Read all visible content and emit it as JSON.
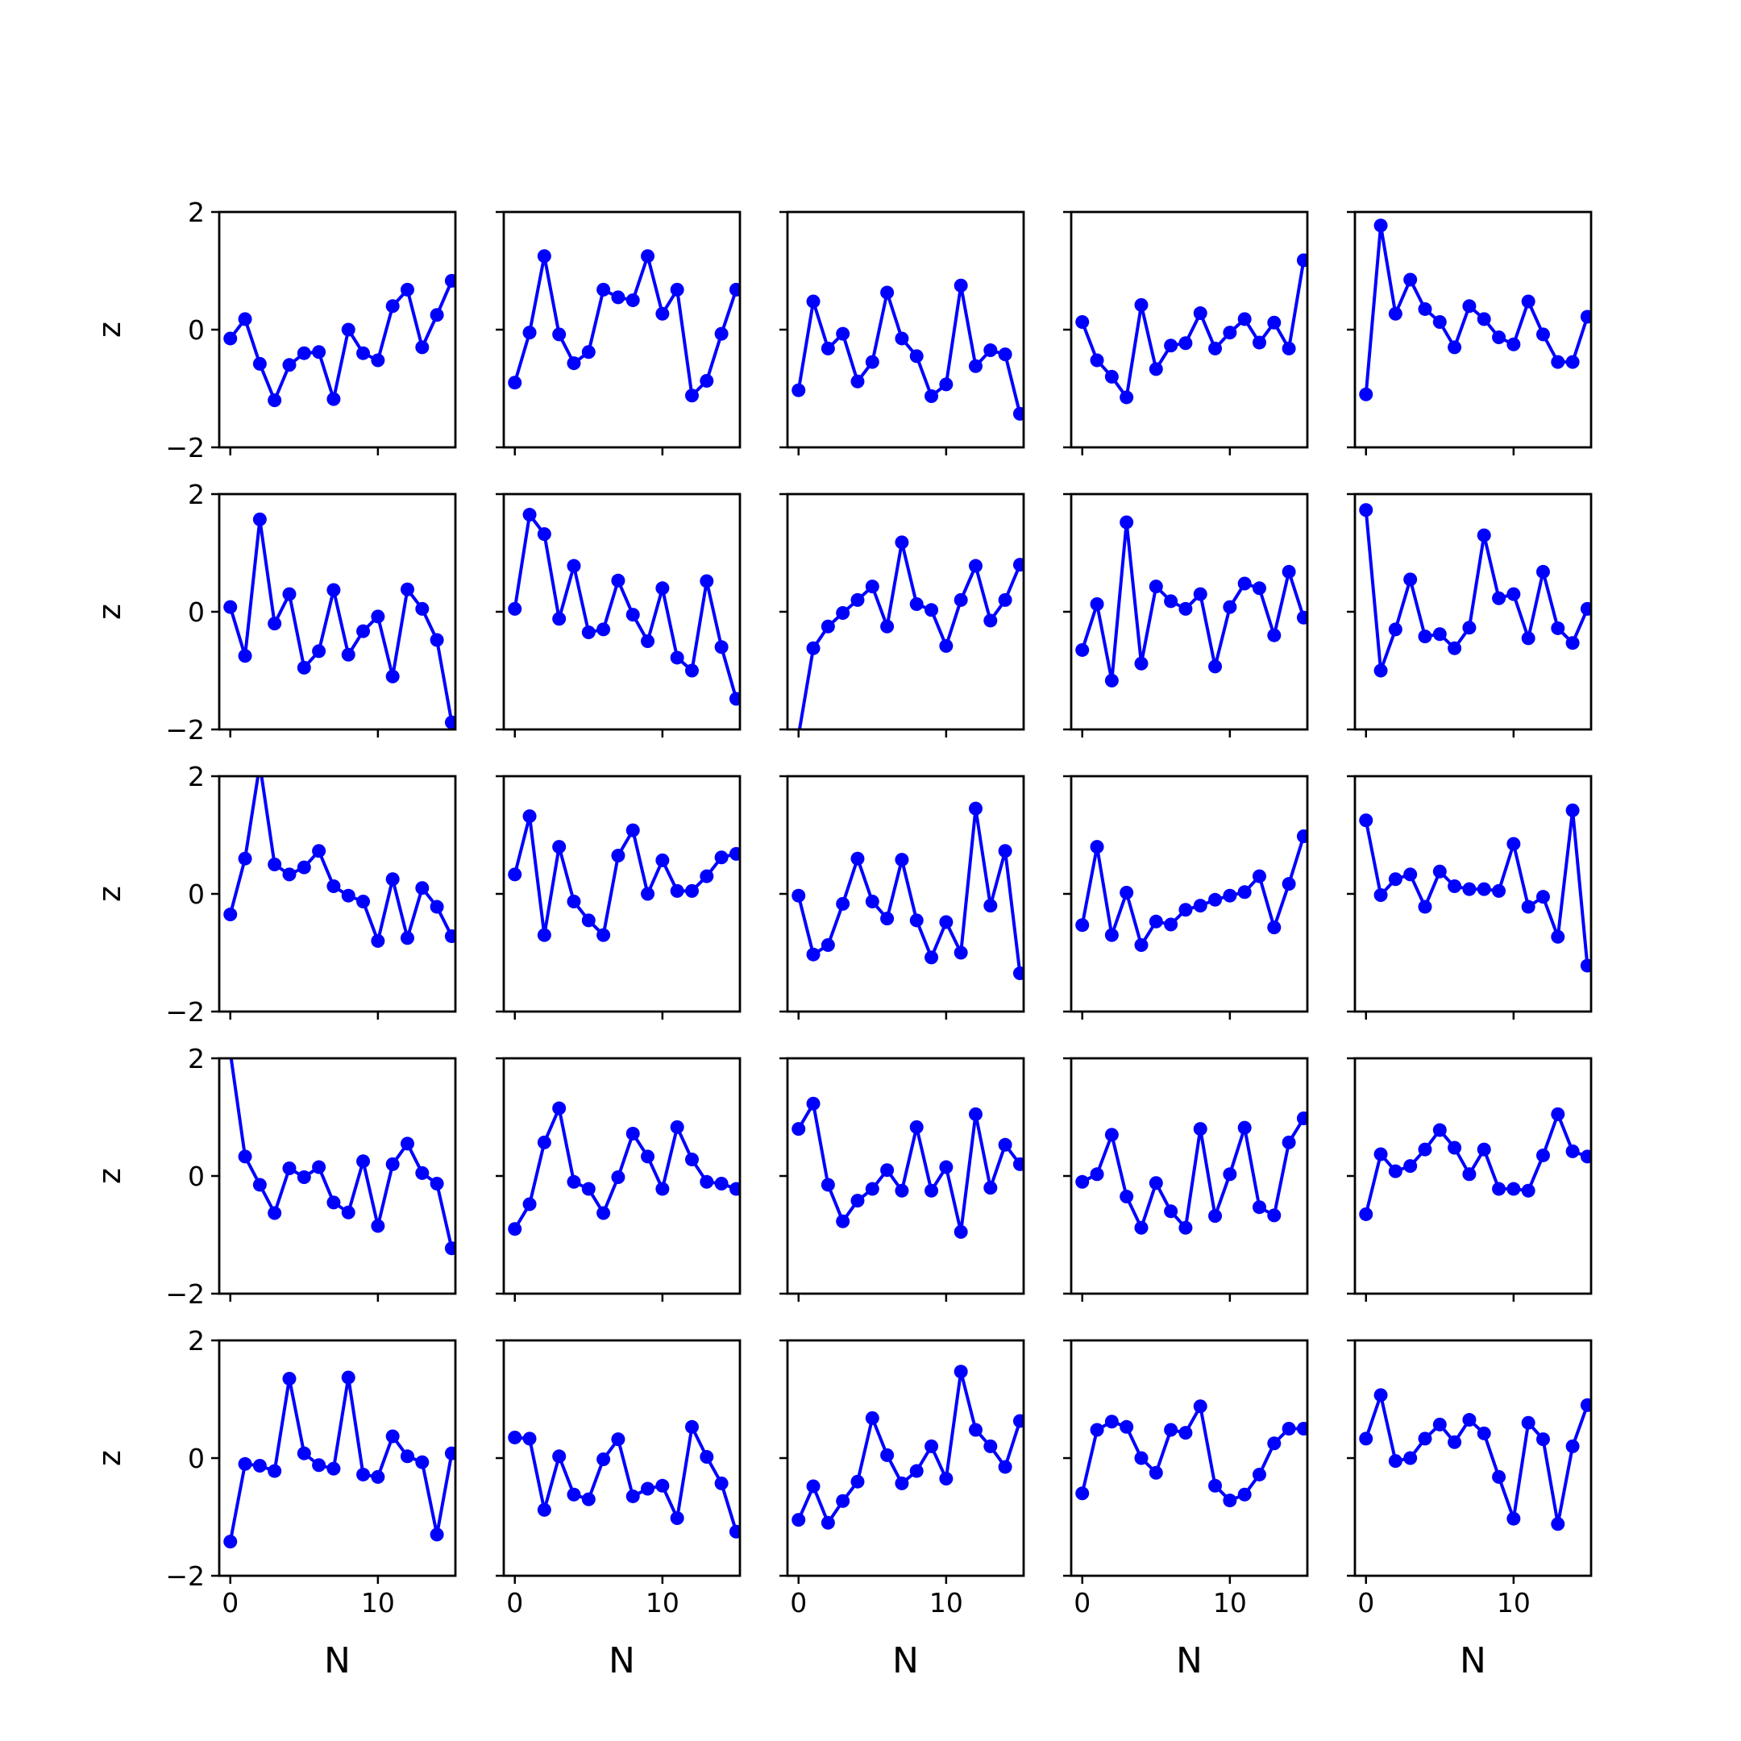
{
  "chart_data": {
    "type": "line",
    "layout": "5x5 grid of small multiples, shared axes",
    "xlabel": "N",
    "ylabel": "z",
    "xlim": [
      -0.75,
      15.25
    ],
    "ylim": [
      -2,
      2
    ],
    "xticks": [
      0,
      10
    ],
    "xtick_labels": [
      "0",
      "10"
    ],
    "yticks": [
      -2,
      0,
      2
    ],
    "ytick_labels": [
      "−2",
      "0",
      "2"
    ],
    "x": [
      0,
      1,
      2,
      3,
      4,
      5,
      6,
      7,
      8,
      9,
      10,
      11,
      12,
      13,
      14,
      15
    ],
    "line_color": "#0000ff",
    "marker": "circle",
    "grid": false,
    "legend": "none",
    "panels": [
      [
        [
          -0.15,
          0.18,
          -0.58,
          -1.2,
          -0.6,
          -0.4,
          -0.38,
          -1.18,
          0.0,
          -0.4,
          -0.52,
          0.4,
          0.68,
          -0.3,
          0.25,
          0.83
        ],
        [
          -0.9,
          -0.05,
          1.25,
          -0.08,
          -0.57,
          -0.38,
          0.68,
          0.55,
          0.5,
          1.25,
          0.27,
          0.68,
          -1.12,
          -0.87,
          -0.07,
          0.68
        ],
        [
          -1.03,
          0.48,
          -0.32,
          -0.07,
          -0.88,
          -0.55,
          0.63,
          -0.15,
          -0.45,
          -1.13,
          -0.93,
          0.75,
          -0.62,
          -0.35,
          -0.42,
          -1.43
        ],
        [
          0.13,
          -0.52,
          -0.8,
          -1.15,
          0.42,
          -0.67,
          -0.27,
          -0.23,
          0.28,
          -0.32,
          -0.05,
          0.18,
          -0.22,
          0.12,
          -0.32,
          1.18
        ],
        [
          -1.1,
          1.77,
          0.27,
          0.85,
          0.35,
          0.13,
          -0.3,
          0.4,
          0.18,
          -0.13,
          -0.25,
          0.48,
          -0.08,
          -0.55,
          -0.55,
          0.22
        ]
      ],
      [
        [
          0.08,
          -0.75,
          1.57,
          -0.2,
          0.3,
          -0.95,
          -0.67,
          0.37,
          -0.73,
          -0.33,
          -0.08,
          -1.1,
          0.38,
          0.05,
          -0.48,
          -1.88
        ],
        [
          0.05,
          1.65,
          1.32,
          -0.12,
          0.78,
          -0.35,
          -0.3,
          0.53,
          -0.05,
          -0.5,
          0.4,
          -0.78,
          -1.0,
          0.52,
          -0.6,
          -1.48
        ],
        [
          -2.1,
          -0.62,
          -0.25,
          -0.02,
          0.2,
          0.43,
          -0.25,
          1.18,
          0.13,
          0.03,
          -0.58,
          0.2,
          0.78,
          -0.15,
          0.2,
          0.8
        ],
        [
          -0.65,
          0.13,
          -1.17,
          1.52,
          -0.88,
          0.43,
          0.18,
          0.05,
          0.3,
          -0.93,
          0.08,
          0.48,
          0.4,
          -0.4,
          0.68,
          -0.1
        ],
        [
          1.73,
          -1.0,
          -0.3,
          0.55,
          -0.42,
          -0.38,
          -0.62,
          -0.27,
          1.3,
          0.23,
          0.3,
          -0.45,
          0.68,
          -0.28,
          -0.53,
          0.05
        ]
      ],
      [
        [
          -0.35,
          0.6,
          2.2,
          0.5,
          0.33,
          0.45,
          0.73,
          0.13,
          -0.03,
          -0.13,
          -0.8,
          0.25,
          -0.75,
          0.1,
          -0.22,
          -0.72
        ],
        [
          0.33,
          1.32,
          -0.7,
          0.8,
          -0.13,
          -0.45,
          -0.7,
          0.65,
          1.08,
          0.0,
          0.57,
          0.05,
          0.05,
          0.3,
          0.62,
          0.68
        ],
        [
          -0.03,
          -1.03,
          -0.87,
          -0.17,
          0.6,
          -0.13,
          -0.42,
          0.58,
          -0.45,
          -1.08,
          -0.48,
          -1.0,
          1.45,
          -0.2,
          0.73,
          -1.35
        ],
        [
          -0.53,
          0.8,
          -0.7,
          0.02,
          -0.87,
          -0.47,
          -0.52,
          -0.27,
          -0.2,
          -0.1,
          -0.03,
          0.03,
          0.3,
          -0.57,
          0.17,
          0.98
        ],
        [
          1.25,
          -0.02,
          0.25,
          0.33,
          -0.22,
          0.38,
          0.13,
          0.08,
          0.08,
          0.05,
          0.85,
          -0.22,
          -0.05,
          -0.73,
          1.42,
          -1.22
        ]
      ],
      [
        [
          2.1,
          0.33,
          -0.15,
          -0.63,
          0.13,
          -0.02,
          0.15,
          -0.45,
          -0.62,
          0.25,
          -0.85,
          0.2,
          0.55,
          0.05,
          -0.13,
          -1.23
        ],
        [
          -0.9,
          -0.48,
          0.57,
          1.15,
          -0.1,
          -0.22,
          -0.63,
          -0.02,
          0.72,
          0.33,
          -0.22,
          0.83,
          0.28,
          -0.1,
          -0.13,
          -0.22
        ],
        [
          0.8,
          1.23,
          -0.15,
          -0.77,
          -0.42,
          -0.22,
          0.1,
          -0.25,
          0.83,
          -0.25,
          0.15,
          -0.95,
          1.05,
          -0.2,
          0.53,
          0.2
        ],
        [
          -0.1,
          0.03,
          0.7,
          -0.35,
          -0.88,
          -0.12,
          -0.6,
          -0.88,
          0.8,
          -0.68,
          0.03,
          0.82,
          -0.53,
          -0.67,
          0.57,
          0.98
        ],
        [
          -0.65,
          0.37,
          0.08,
          0.17,
          0.45,
          0.78,
          0.48,
          0.03,
          0.45,
          -0.22,
          -0.22,
          -0.25,
          0.35,
          1.05,
          0.42,
          0.33
        ]
      ],
      [
        [
          -1.42,
          -0.1,
          -0.13,
          -0.22,
          1.35,
          0.08,
          -0.12,
          -0.18,
          1.37,
          -0.28,
          -0.32,
          0.37,
          0.03,
          -0.07,
          -1.3,
          0.08
        ],
        [
          0.35,
          0.33,
          -0.88,
          0.03,
          -0.62,
          -0.7,
          -0.02,
          0.32,
          -0.65,
          -0.52,
          -0.47,
          -1.02,
          0.53,
          0.02,
          -0.43,
          -1.25
        ],
        [
          -1.05,
          -0.48,
          -1.1,
          -0.73,
          -0.4,
          0.68,
          0.05,
          -0.43,
          -0.22,
          0.2,
          -0.35,
          1.47,
          0.48,
          0.2,
          -0.15,
          0.63
        ],
        [
          -0.6,
          0.48,
          0.62,
          0.53,
          0.0,
          -0.25,
          0.48,
          0.43,
          0.88,
          -0.47,
          -0.72,
          -0.62,
          -0.28,
          0.25,
          0.5,
          0.5
        ],
        [
          0.33,
          1.07,
          -0.05,
          0.0,
          0.33,
          0.57,
          0.27,
          0.65,
          0.42,
          -0.32,
          -1.03,
          0.6,
          0.32,
          -1.12,
          0.2,
          0.9
        ]
      ]
    ]
  }
}
